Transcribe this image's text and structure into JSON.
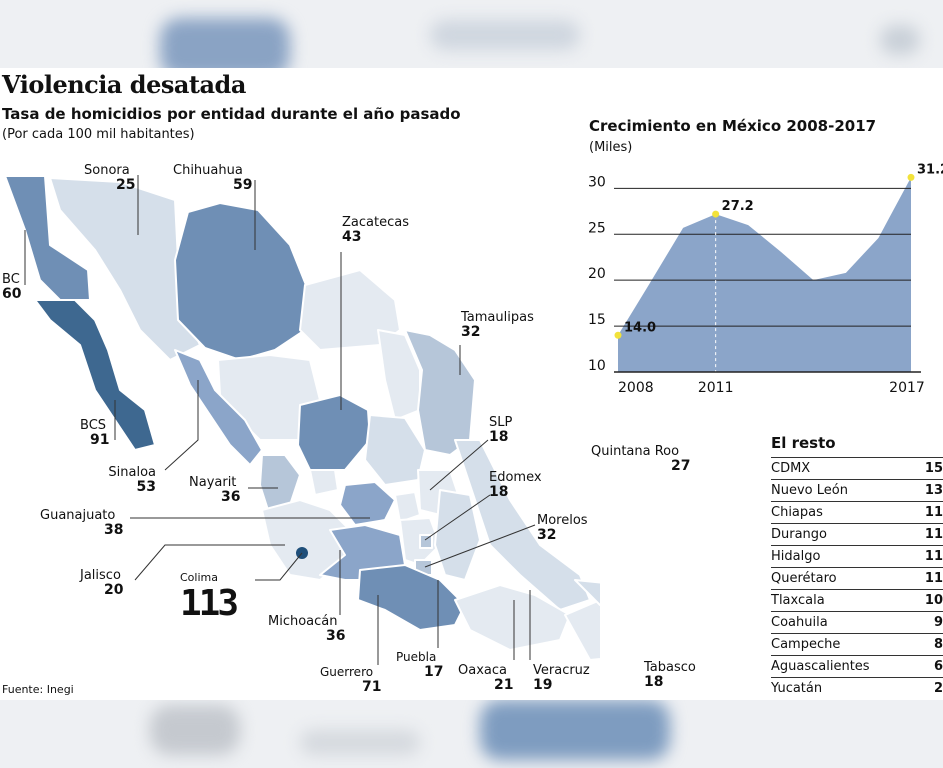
{
  "title": "Violencia desatada",
  "subtitle": "Tasa de homicidios por entidad durante el año pasado",
  "note": "(Por cada 100 mil habitantes)",
  "source": "Fuente: Inegi",
  "colors": {
    "light": "#e4eaf1",
    "mid": "#b6c6d9",
    "dark": "#6f8fb5",
    "darker": "#3e6890",
    "area": "#8ba5c9",
    "marker": "#f2e23a"
  },
  "map_labels": {
    "sonora": {
      "name": "Sonora",
      "value": "25"
    },
    "chihuahua": {
      "name": "Chihuahua",
      "value": "59"
    },
    "zacatecas": {
      "name": "Zacatecas",
      "value": "43"
    },
    "tamaulipas": {
      "name": "Tamaulipas",
      "value": "32"
    },
    "bc": {
      "name": "BC",
      "value": "60"
    },
    "bcs": {
      "name": "BCS",
      "value": "91"
    },
    "sinaloa": {
      "name": "Sinaloa",
      "value": "53"
    },
    "nayarit": {
      "name": "Nayarit",
      "value": "36"
    },
    "slp": {
      "name": "SLP",
      "value": "18"
    },
    "edomex": {
      "name": "Edomex",
      "value": "18"
    },
    "morelos": {
      "name": "Morelos",
      "value": "32"
    },
    "quintana_roo": {
      "name": "Quintana Roo",
      "value": "27"
    },
    "guanajuato": {
      "name": "Guanajuato",
      "value": "38"
    },
    "jalisco": {
      "name": "Jalisco",
      "value": "20"
    },
    "colima": {
      "name": "Colima",
      "value": "113"
    },
    "michoacan": {
      "name": "Michoacán",
      "value": "36"
    },
    "guerrero": {
      "name": "Guerrero",
      "value": "71"
    },
    "puebla": {
      "name": "Puebla",
      "value": "17"
    },
    "oaxaca": {
      "name": "Oaxaca",
      "value": "21"
    },
    "veracruz": {
      "name": "Veracruz",
      "value": "19"
    },
    "tabasco": {
      "name": "Tabasco",
      "value": "18"
    }
  },
  "chart_data": {
    "type": "area",
    "title": "Crecimiento en México 2008-2017",
    "ylabel": "(Miles)",
    "x": [
      2008,
      2009,
      2010,
      2011,
      2012,
      2013,
      2014,
      2015,
      2016,
      2017
    ],
    "values": [
      14.0,
      19.8,
      25.7,
      27.2,
      26.0,
      23.1,
      20.0,
      20.8,
      24.6,
      31.2
    ],
    "ylim": [
      10,
      32
    ],
    "yticks": [
      "10",
      "15",
      "20",
      "25",
      "30"
    ],
    "xtick_labels": [
      "2008",
      "2011",
      "2017"
    ],
    "annotations": [
      "14.0",
      "27.2",
      "31.2"
    ]
  },
  "rest": {
    "title": "El resto",
    "rows": [
      {
        "name": "CDMX",
        "value": "15"
      },
      {
        "name": "Nuevo León",
        "value": "13"
      },
      {
        "name": "Chiapas",
        "value": "11"
      },
      {
        "name": "Durango",
        "value": "11"
      },
      {
        "name": "Hidalgo",
        "value": "11"
      },
      {
        "name": "Querétaro",
        "value": "11"
      },
      {
        "name": "Tlaxcala",
        "value": "10"
      },
      {
        "name": "Coahuila",
        "value": "9"
      },
      {
        "name": "Campeche",
        "value": "8"
      },
      {
        "name": "Aguascalientes",
        "value": "6"
      },
      {
        "name": "Yucatán",
        "value": "2"
      }
    ]
  }
}
